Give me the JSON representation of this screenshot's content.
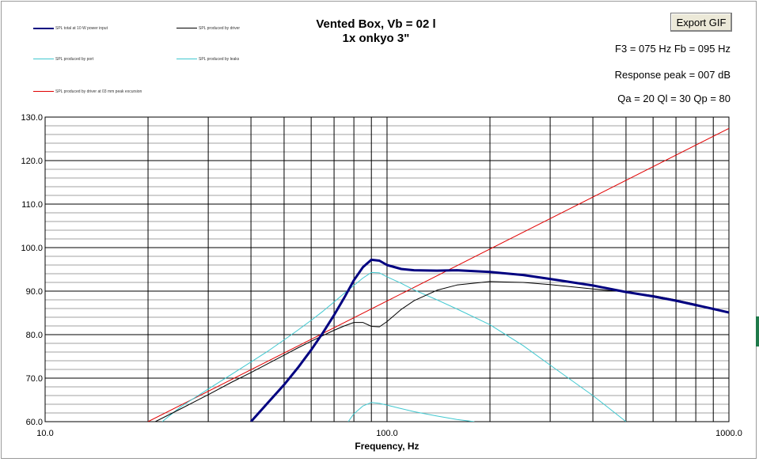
{
  "header": {
    "title_line1": "Vented Box, Vb = 02 l",
    "title_line2": "1x onkyo 3\"",
    "export_label": "Export GIF",
    "info_f3fb": "F3 = 075 Hz  Fb = 095 Hz",
    "info_peak": "Response peak = 007 dB",
    "info_q": "Qa = 20  Ql = 30  Qp = 80"
  },
  "colors": {
    "total": "#000080",
    "driver": "#000000",
    "port": "#40c8d0",
    "leaks": "#40c8d0",
    "excursion": "#e00000",
    "grid_major": "#000000",
    "grid_minor": "#a0a0a0"
  },
  "chart_data": {
    "type": "line",
    "title": "Vented Box, Vb = 02 l",
    "subtitle": "1x onkyo 3\"",
    "xlabel": "Frequency, Hz",
    "ylabel": "",
    "xscale": "log",
    "xlim": [
      10,
      1000
    ],
    "ylim": [
      60,
      130
    ],
    "x_tick_labels": [
      "10.0",
      "100.0",
      "1000.0"
    ],
    "y_tick_labels": [
      "60.0",
      "70.0",
      "80.0",
      "90.0",
      "100.0",
      "110.0",
      "120.0",
      "130.0"
    ],
    "grid": true,
    "legend_position": "top-left",
    "series": [
      {
        "name": "SPL total at 10 W power input",
        "color_key": "total",
        "x": [
          40,
          45,
          50,
          55,
          60,
          65,
          70,
          75,
          80,
          85,
          90,
          95,
          100,
          110,
          120,
          140,
          160,
          200,
          250,
          300,
          400,
          500,
          600,
          700,
          800,
          900,
          1000
        ],
        "y": [
          60,
          64.5,
          68.5,
          72.5,
          76.5,
          80.5,
          84.5,
          88.5,
          92.5,
          95.5,
          97.2,
          97.0,
          96.0,
          95.1,
          94.8,
          94.7,
          94.8,
          94.4,
          93.7,
          92.8,
          91.3,
          89.8,
          88.8,
          87.8,
          86.8,
          85.9,
          85.1
        ]
      },
      {
        "name": "SPL produced by driver",
        "color_key": "driver",
        "x": [
          21,
          25,
          30,
          35,
          40,
          45,
          50,
          55,
          60,
          65,
          70,
          75,
          80,
          85,
          90,
          95,
          100,
          110,
          120,
          140,
          160,
          200,
          250,
          300,
          400,
          500,
          600,
          700,
          800,
          900,
          1000
        ],
        "y": [
          60,
          63,
          66.2,
          69,
          71.3,
          73.4,
          75.3,
          77.0,
          78.5,
          79.8,
          81.0,
          82.0,
          82.8,
          82.8,
          81.9,
          81.8,
          83.0,
          85.8,
          87.8,
          90.2,
          91.4,
          92.2,
          92.0,
          91.5,
          90.5,
          89.8,
          89.0,
          88.0,
          87.0,
          86.0,
          85.1
        ]
      },
      {
        "name": "SPL produced by port",
        "color_key": "port",
        "x": [
          22,
          25,
          30,
          35,
          40,
          45,
          50,
          55,
          60,
          65,
          70,
          75,
          80,
          85,
          90,
          95,
          100,
          110,
          120,
          140,
          160,
          200,
          250,
          300,
          400,
          500
        ],
        "y": [
          60,
          63.5,
          67.5,
          70.8,
          73.7,
          76.3,
          78.8,
          81.1,
          83.3,
          85.4,
          87.5,
          89.5,
          91.3,
          93.0,
          94.3,
          94.2,
          93.3,
          91.8,
          90.3,
          88.0,
          85.9,
          82.3,
          77.5,
          73.0,
          66.0,
          60
        ]
      },
      {
        "name": "SPL produced by leaks",
        "color_key": "leaks",
        "x": [
          77,
          80,
          85,
          90,
          95,
          100,
          110,
          120,
          140,
          160,
          180
        ],
        "y": [
          60,
          61.8,
          63.6,
          64.4,
          64.2,
          63.8,
          63.0,
          62.3,
          61.3,
          60.5,
          60
        ]
      },
      {
        "name": "SPL produced by driver at 03 mm peak excursion",
        "color_key": "excursion",
        "x": [
          20,
          1000
        ],
        "y": [
          60,
          127.4
        ]
      }
    ]
  }
}
